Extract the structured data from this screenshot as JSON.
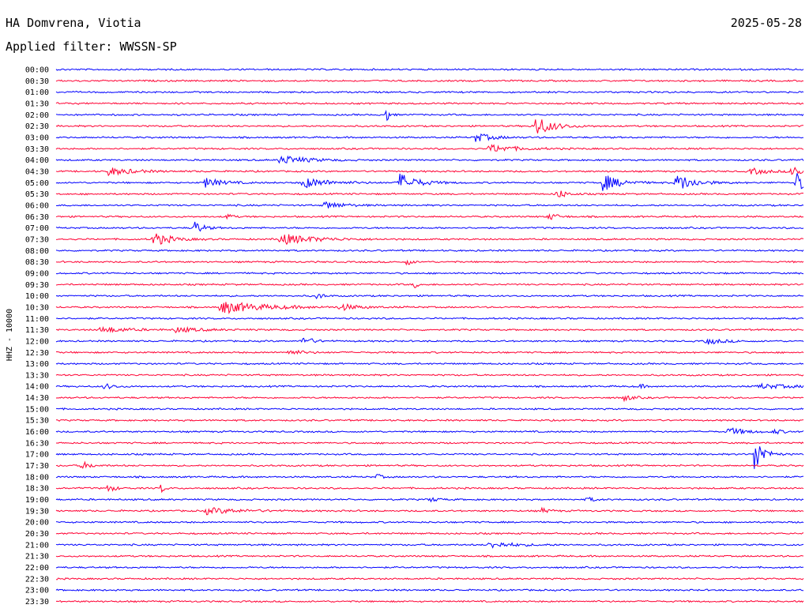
{
  "header": {
    "station": "HA Domvrena, Viotia",
    "date": "2025-05-28",
    "filter": "Applied filter: WWSSN-SP"
  },
  "chart_data": {
    "type": "line",
    "subtype": "helicorder",
    "ylabel": "HHZ - 10000",
    "row_labels": [
      "00:00",
      "00:30",
      "01:00",
      "01:30",
      "02:00",
      "02:30",
      "03:00",
      "03:30",
      "04:00",
      "04:30",
      "05:00",
      "05:30",
      "06:00",
      "06:30",
      "07:00",
      "07:30",
      "08:00",
      "08:30",
      "09:00",
      "09:30",
      "10:00",
      "10:30",
      "11:00",
      "11:30",
      "12:00",
      "12:30",
      "13:00",
      "13:30",
      "14:00",
      "14:30",
      "15:00",
      "15:30",
      "16:00",
      "16:30",
      "17:00",
      "17:30",
      "18:00",
      "18:30",
      "19:00",
      "19:30",
      "20:00",
      "20:30",
      "21:00",
      "21:30",
      "22:00",
      "22:30",
      "23:00",
      "23:30"
    ],
    "trace_colors": [
      "#0000ff",
      "#ff0033"
    ],
    "grid": false,
    "events": [
      {
        "row": 4,
        "pos": 0.44,
        "amp": 14,
        "dur": 0.004
      },
      {
        "row": 5,
        "pos": 0.64,
        "amp": 14,
        "dur": 0.02
      },
      {
        "row": 6,
        "pos": 0.56,
        "amp": 6,
        "dur": 0.02
      },
      {
        "row": 7,
        "pos": 0.58,
        "amp": 5,
        "dur": 0.03
      },
      {
        "row": 8,
        "pos": 0.3,
        "amp": 6,
        "dur": 0.03
      },
      {
        "row": 9,
        "pos": 0.07,
        "amp": 5,
        "dur": 0.03
      },
      {
        "row": 9,
        "pos": 0.93,
        "amp": 4,
        "dur": 0.02
      },
      {
        "row": 9,
        "pos": 0.985,
        "amp": 10,
        "dur": 0.01
      },
      {
        "row": 10,
        "pos": 0.2,
        "amp": 6,
        "dur": 0.02
      },
      {
        "row": 10,
        "pos": 0.33,
        "amp": 7,
        "dur": 0.03
      },
      {
        "row": 10,
        "pos": 0.46,
        "amp": 12,
        "dur": 0.02
      },
      {
        "row": 10,
        "pos": 0.73,
        "amp": 12,
        "dur": 0.02
      },
      {
        "row": 10,
        "pos": 0.83,
        "amp": 12,
        "dur": 0.02
      },
      {
        "row": 10,
        "pos": 0.99,
        "amp": 14,
        "dur": 0.01
      },
      {
        "row": 11,
        "pos": 0.67,
        "amp": 7,
        "dur": 0.01
      },
      {
        "row": 12,
        "pos": 0.36,
        "amp": 5,
        "dur": 0.02
      },
      {
        "row": 13,
        "pos": 0.23,
        "amp": 7,
        "dur": 0.004
      },
      {
        "row": 13,
        "pos": 0.66,
        "amp": 5,
        "dur": 0.01
      },
      {
        "row": 14,
        "pos": 0.185,
        "amp": 9,
        "dur": 0.01
      },
      {
        "row": 15,
        "pos": 0.13,
        "amp": 9,
        "dur": 0.02
      },
      {
        "row": 15,
        "pos": 0.3,
        "amp": 7,
        "dur": 0.04
      },
      {
        "row": 17,
        "pos": 0.47,
        "amp": 5,
        "dur": 0.005
      },
      {
        "row": 19,
        "pos": 0.48,
        "amp": 5,
        "dur": 0.003
      },
      {
        "row": 20,
        "pos": 0.35,
        "amp": 6,
        "dur": 0.005
      },
      {
        "row": 21,
        "pos": 0.22,
        "amp": 8,
        "dur": 0.05
      },
      {
        "row": 21,
        "pos": 0.38,
        "amp": 4,
        "dur": 0.02
      },
      {
        "row": 23,
        "pos": 0.06,
        "amp": 4,
        "dur": 0.03
      },
      {
        "row": 23,
        "pos": 0.16,
        "amp": 3,
        "dur": 0.03
      },
      {
        "row": 24,
        "pos": 0.33,
        "amp": 7,
        "dur": 0.01
      },
      {
        "row": 24,
        "pos": 0.87,
        "amp": 4,
        "dur": 0.02
      },
      {
        "row": 25,
        "pos": 0.31,
        "amp": 3,
        "dur": 0.02
      },
      {
        "row": 28,
        "pos": 0.065,
        "amp": 4,
        "dur": 0.01
      },
      {
        "row": 28,
        "pos": 0.78,
        "amp": 4,
        "dur": 0.005
      },
      {
        "row": 28,
        "pos": 0.94,
        "amp": 3,
        "dur": 0.04
      },
      {
        "row": 29,
        "pos": 0.76,
        "amp": 4,
        "dur": 0.01
      },
      {
        "row": 32,
        "pos": 0.9,
        "amp": 5,
        "dur": 0.02
      },
      {
        "row": 32,
        "pos": 0.96,
        "amp": 3,
        "dur": 0.01
      },
      {
        "row": 34,
        "pos": 0.935,
        "amp": 26,
        "dur": 0.01
      },
      {
        "row": 35,
        "pos": 0.035,
        "amp": 5,
        "dur": 0.01
      },
      {
        "row": 36,
        "pos": 0.43,
        "amp": 4,
        "dur": 0.005
      },
      {
        "row": 37,
        "pos": 0.07,
        "amp": 5,
        "dur": 0.008
      },
      {
        "row": 37,
        "pos": 0.14,
        "amp": 6,
        "dur": 0.005
      },
      {
        "row": 38,
        "pos": 0.5,
        "amp": 3,
        "dur": 0.01
      },
      {
        "row": 38,
        "pos": 0.71,
        "amp": 3,
        "dur": 0.01
      },
      {
        "row": 39,
        "pos": 0.2,
        "amp": 4,
        "dur": 0.04
      },
      {
        "row": 39,
        "pos": 0.65,
        "amp": 3,
        "dur": 0.01
      },
      {
        "row": 42,
        "pos": 0.58,
        "amp": 4,
        "dur": 0.03
      }
    ]
  }
}
